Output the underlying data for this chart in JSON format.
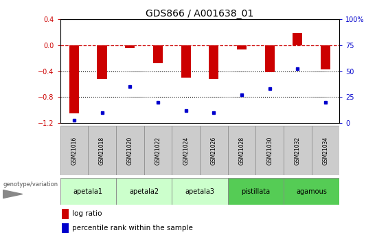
{
  "title": "GDS866 / A001638_01",
  "samples": [
    "GSM21016",
    "GSM21018",
    "GSM21020",
    "GSM21022",
    "GSM21024",
    "GSM21026",
    "GSM21028",
    "GSM21030",
    "GSM21032",
    "GSM21034"
  ],
  "log_ratio": [
    -1.05,
    -0.52,
    -0.05,
    -0.28,
    -0.5,
    -0.52,
    -0.07,
    -0.42,
    0.18,
    -0.37
  ],
  "percentile_rank": [
    3,
    10,
    35,
    20,
    12,
    10,
    27,
    33,
    52,
    20
  ],
  "ylim_left": [
    -1.2,
    0.4
  ],
  "ylim_right": [
    0,
    100
  ],
  "right_ticks": [
    0,
    25,
    50,
    75,
    100
  ],
  "right_tick_labels": [
    "0",
    "25",
    "50",
    "75",
    "100%"
  ],
  "left_ticks": [
    -1.2,
    -0.8,
    -0.4,
    0.0,
    0.4
  ],
  "bar_color": "#cc0000",
  "dot_color": "#0000cc",
  "hline_color": "#cc0000",
  "dotline_color": "#000000",
  "groups": [
    {
      "name": "apetala1",
      "start": 0,
      "end": 2,
      "color": "#ccffcc"
    },
    {
      "name": "apetala2",
      "start": 2,
      "end": 4,
      "color": "#ccffcc"
    },
    {
      "name": "apetala3",
      "start": 4,
      "end": 6,
      "color": "#ccffcc"
    },
    {
      "name": "pistillata",
      "start": 6,
      "end": 8,
      "color": "#55cc55"
    },
    {
      "name": "agamous",
      "start": 8,
      "end": 10,
      "color": "#55cc55"
    }
  ],
  "title_fontsize": 10,
  "tick_fontsize": 7,
  "right_tick_color": "#0000cc",
  "bar_color_red": "#cc0000",
  "dot_color_blue": "#0000cc"
}
